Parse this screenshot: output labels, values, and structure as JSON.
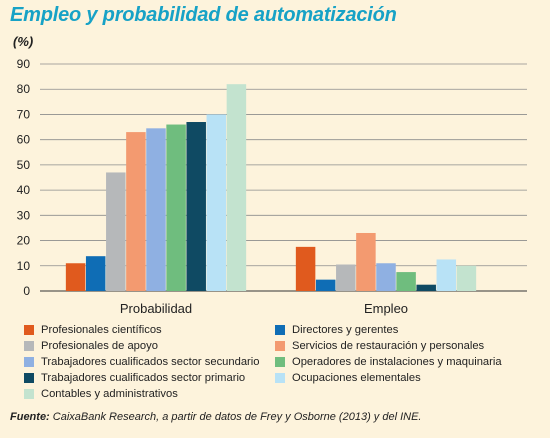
{
  "title": "Empleo y probabilidad de automatización",
  "source_label": "Fuente:",
  "source_text": "CaixaBank Research, a partir de datos de Frey y Osborne (2013) y del INE.",
  "chart_data": {
    "type": "bar",
    "ylabel": "(%)",
    "ylim": [
      0,
      90
    ],
    "yticks": [
      0,
      10,
      20,
      30,
      40,
      50,
      60,
      70,
      80,
      90
    ],
    "grid": true,
    "legend_position": "bottom",
    "categories": [
      "Probabilidad",
      "Empleo"
    ],
    "series": [
      {
        "name": "Profesionales científicos",
        "color": "#e05a1e",
        "values": [
          11,
          17.5
        ]
      },
      {
        "name": "Directores y gerentes",
        "color": "#0f6db5",
        "values": [
          13.8,
          4.5
        ]
      },
      {
        "name": "Profesionales de apoyo",
        "color": "#b6b8ba",
        "values": [
          47,
          10.5
        ]
      },
      {
        "name": "Servicios de restauración y personales",
        "color": "#f39a70",
        "values": [
          63,
          23
        ]
      },
      {
        "name": "Trabajadores cualificados sector secundario",
        "color": "#8fb0e2",
        "values": [
          64.5,
          11
        ]
      },
      {
        "name": "Operadores de instalaciones y maquinaria",
        "color": "#6fbd7e",
        "values": [
          66,
          7.5
        ]
      },
      {
        "name": "Trabajadores cualificados sector primario",
        "color": "#0f4a63",
        "values": [
          67,
          2.5
        ]
      },
      {
        "name": "Ocupaciones elementales",
        "color": "#b8e2f6",
        "values": [
          70,
          12.5
        ]
      },
      {
        "name": "Contables y administrativos",
        "color": "#c3e3cf",
        "values": [
          82,
          10
        ]
      }
    ]
  }
}
